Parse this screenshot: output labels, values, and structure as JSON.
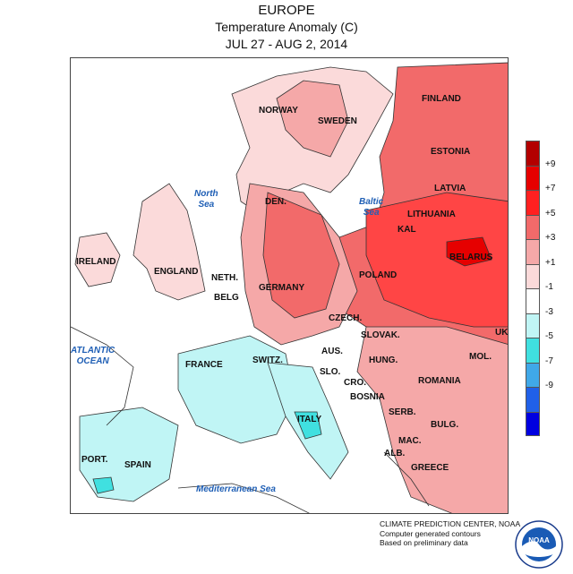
{
  "header": {
    "region": "EUROPE",
    "variable": "Temperature Anomaly (C)",
    "period": "JUL 27 - AUG 2, 2014"
  },
  "map": {
    "countries": {
      "finland": "FINLAND",
      "norway": "NORWAY",
      "sweden": "SWEDEN",
      "estonia": "ESTONIA",
      "latvia": "LATVIA",
      "lithuania": "LITHUANIA",
      "kal": "KAL",
      "belarus": "BELARUS",
      "den": "DEN.",
      "ireland": "IRELAND",
      "england": "ENGLAND",
      "neth": "NETH.",
      "belg": "BELG",
      "germany": "GERMANY",
      "poland": "POLAND",
      "czech": "CZECH.",
      "slovak": "SLOVAK.",
      "ukr": "UKR",
      "aus": "AUS.",
      "hung": "HUNG.",
      "mol": "MOL.",
      "france": "FRANCE",
      "switz": "SWITZ.",
      "slo": "SLO.",
      "cro": "CRO.",
      "romania": "ROMANIA",
      "bosnia": "BOSNIA",
      "serb": "SERB.",
      "bulg": "BULG.",
      "italy": "ITALY",
      "port": "PORT.",
      "spain": "SPAIN",
      "mac": "MAC.",
      "alb": "ALB.",
      "greece": "GREECE"
    },
    "seas": {
      "north_sea": [
        "North",
        "Sea"
      ],
      "baltic_sea": [
        "Baltic",
        "Sea"
      ],
      "atlantic": [
        "ATLANTIC",
        "OCEAN"
      ],
      "med": "Mediterranean Sea"
    }
  },
  "legend": {
    "ticks": [
      "+9",
      "+7",
      "+5",
      "+3",
      "+1",
      "-1",
      "-3",
      "-5",
      "-7",
      "-9"
    ],
    "colors": [
      "#b30000",
      "#e60000",
      "#ff2020",
      "#f26a6a",
      "#f5a8a8",
      "#fbdada",
      "#ffffff",
      "#c0f5f5",
      "#40e0e0",
      "#40a8e8",
      "#2060e8",
      "#0000e0"
    ]
  },
  "credits": {
    "line1": "CLIMATE PREDICTION CENTER, NOAA",
    "line2": "Computer generated contours",
    "line3": "Based on preliminary data"
  },
  "logo": {
    "text": "NOAA"
  }
}
